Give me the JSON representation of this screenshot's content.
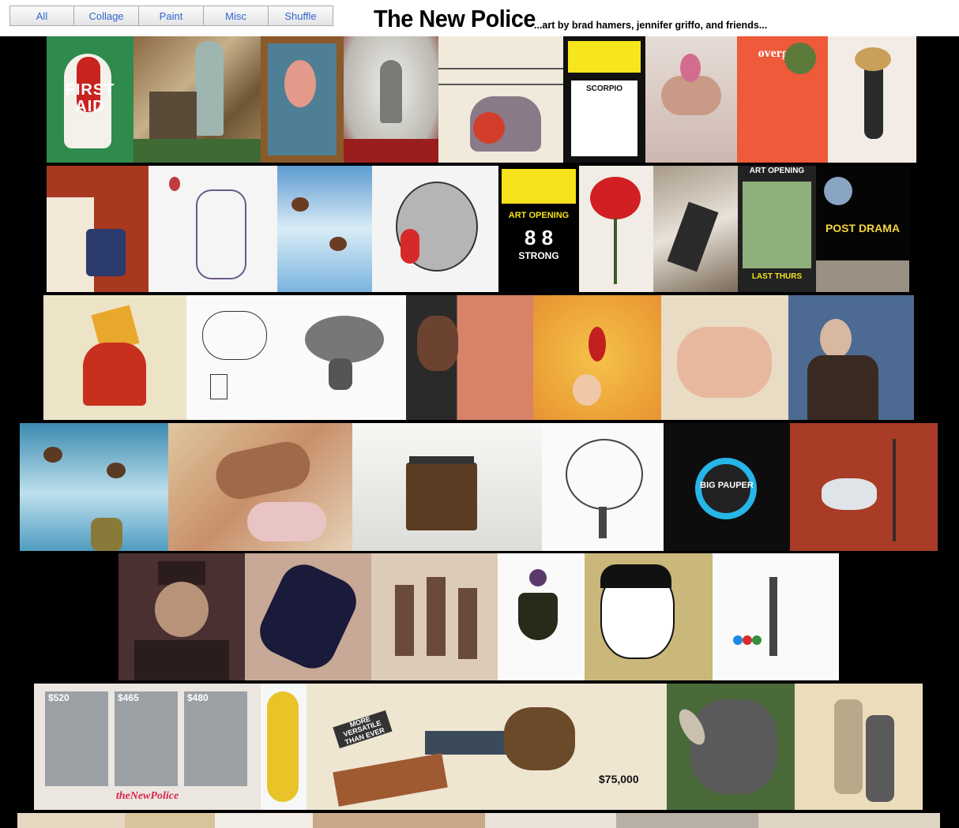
{
  "filters": [
    {
      "label": "All"
    },
    {
      "label": "Collage"
    },
    {
      "label": "Paint"
    },
    {
      "label": "Misc"
    },
    {
      "label": "Shuffle"
    }
  ],
  "header": {
    "title": "The New Police",
    "subtitle": "...art by brad hamers, jennifer griffo, and friends..."
  },
  "tile_text": {
    "first_aid": "FIRST AID",
    "overgive": "overgive.",
    "scorpio": "SCORPIO",
    "art_opening": "ART OPENING",
    "eight_8": "8 8",
    "strong": "STRONG",
    "group_show": "ART OPENING",
    "last_thurs": "LAST THURS",
    "post_drama": "POST DRAMA",
    "big_pauper": "BIG PAUPER",
    "price_520": "$520",
    "price_465": "$465",
    "price_480": "$480",
    "more_versatile": "MORE VERSATILE THAN EVER",
    "price_75000": "$75,000",
    "signature": "theNewPolice"
  },
  "colors": {
    "background": "#000000",
    "header_bg": "#ffffff",
    "button_text": "#3366cc"
  }
}
